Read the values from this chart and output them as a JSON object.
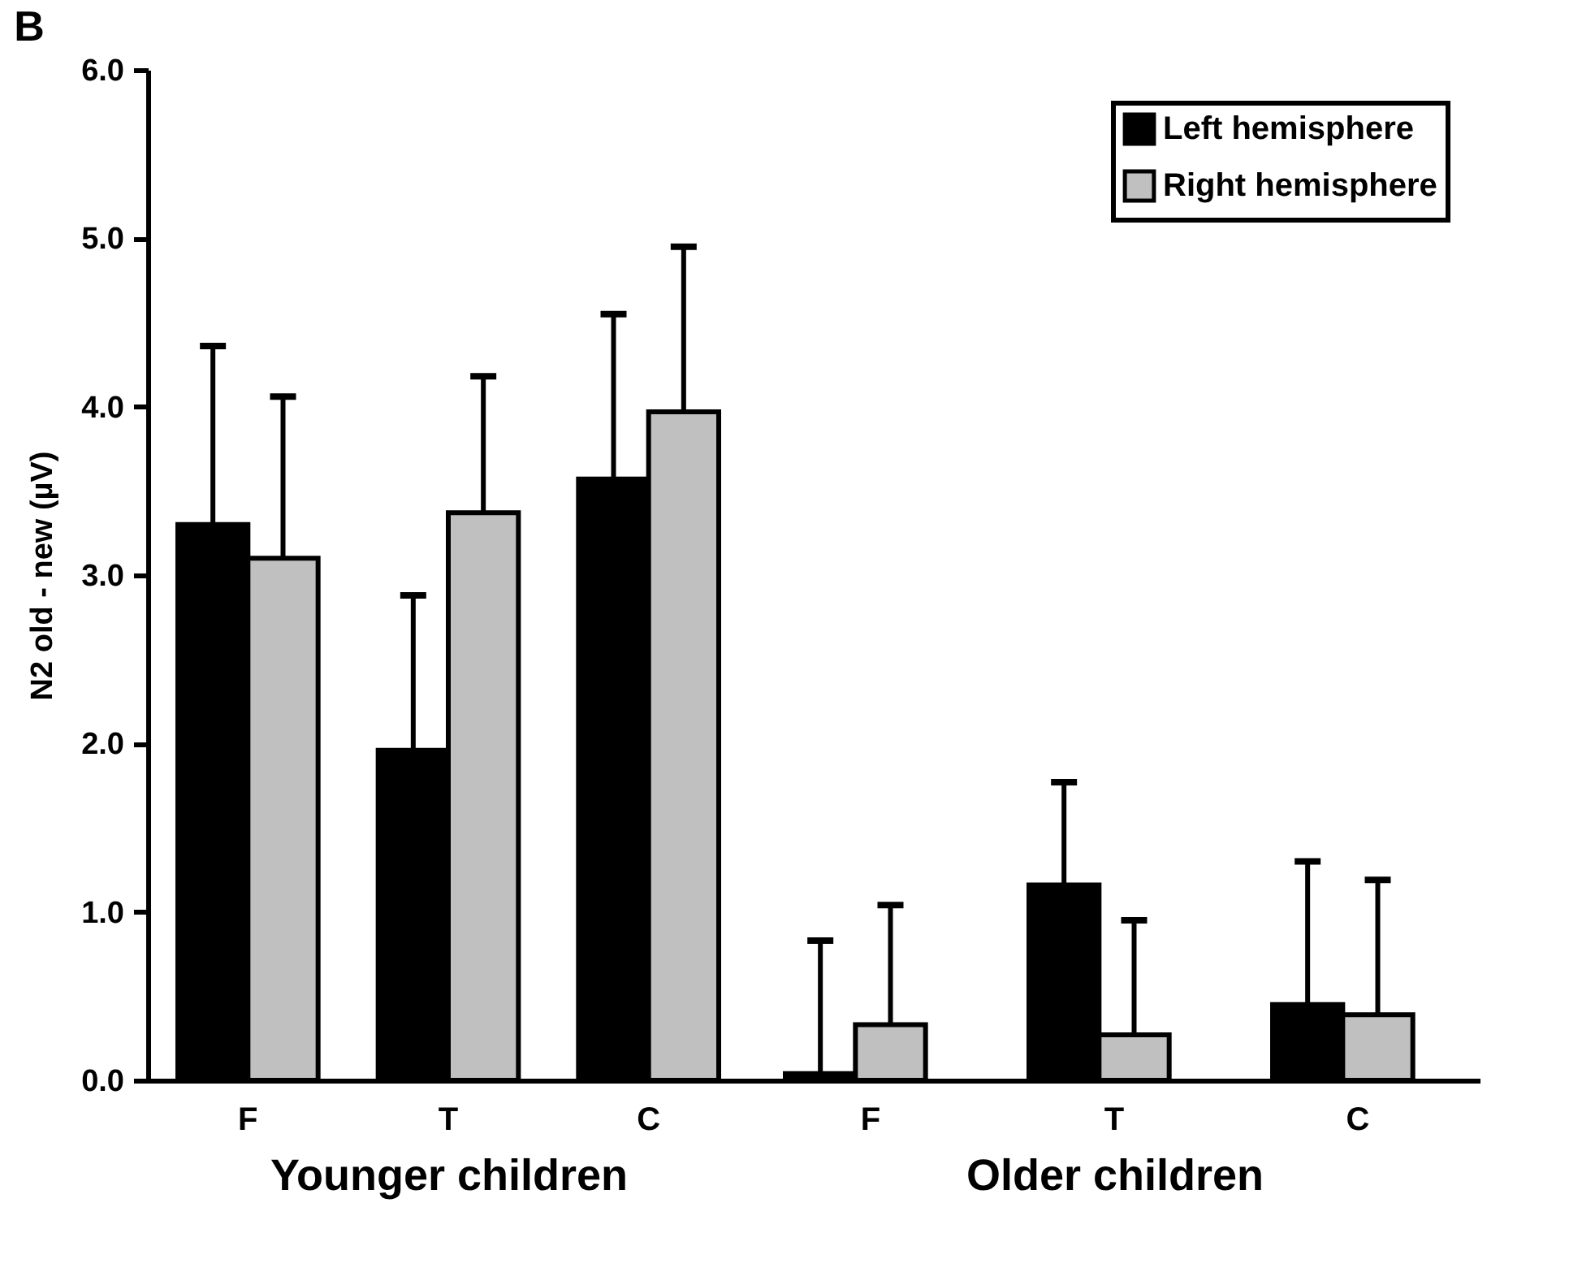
{
  "chart_data": [
    {
      "type": "bar",
      "title": "B",
      "categories": [
        "F",
        "T",
        "C"
      ],
      "xlabel": "Younger children",
      "ylabel": "N2 old - new (µV)",
      "ylim": [
        0,
        6
      ],
      "yticks": [
        {
          "value": 0,
          "label": "0.0"
        },
        {
          "value": 1,
          "label": "1.0"
        },
        {
          "value": 2,
          "label": "2.0"
        },
        {
          "value": 3,
          "label": "3.0"
        },
        {
          "value": 4,
          "label": "4.0"
        },
        {
          "value": 5,
          "label": "5.0"
        },
        {
          "value": 6,
          "label": "6.0"
        }
      ],
      "grid": false,
      "legend": false,
      "series": [
        {
          "name": "Left hemisphere",
          "color": "#000000",
          "values": [
            3.3,
            1.96,
            3.57
          ],
          "errors": [
            [
              3.3,
              4.36
            ],
            [
              1.96,
              2.88
            ],
            [
              3.57,
              4.55
            ]
          ]
        },
        {
          "name": "Right hemisphere",
          "color": "#c0c0c0",
          "values": [
            3.1,
            3.37,
            3.97
          ],
          "errors": [
            [
              3.1,
              4.06
            ],
            [
              3.37,
              4.18
            ],
            [
              3.97,
              4.95
            ]
          ]
        }
      ]
    },
    {
      "type": "bar",
      "categories": [
        "F",
        "T",
        "C"
      ],
      "xlabel": "Older children",
      "ylim": [
        0,
        6
      ],
      "tick_labels": "x",
      "grid": false,
      "legend": "top right",
      "series": [
        {
          "name": "Left hemisphere",
          "color": "#000000",
          "values": [
            0.04,
            1.16,
            0.45
          ],
          "errors": [
            [
              0.04,
              0.83
            ],
            [
              1.16,
              1.77
            ],
            [
              0.45,
              1.3
            ]
          ]
        },
        {
          "name": "Right hemisphere",
          "color": "#c0c0c0",
          "values": [
            0.33,
            0.27,
            0.39
          ],
          "errors": [
            [
              0.33,
              1.04
            ],
            [
              0.27,
              0.95
            ],
            [
              0.39,
              1.19
            ]
          ]
        }
      ]
    }
  ]
}
